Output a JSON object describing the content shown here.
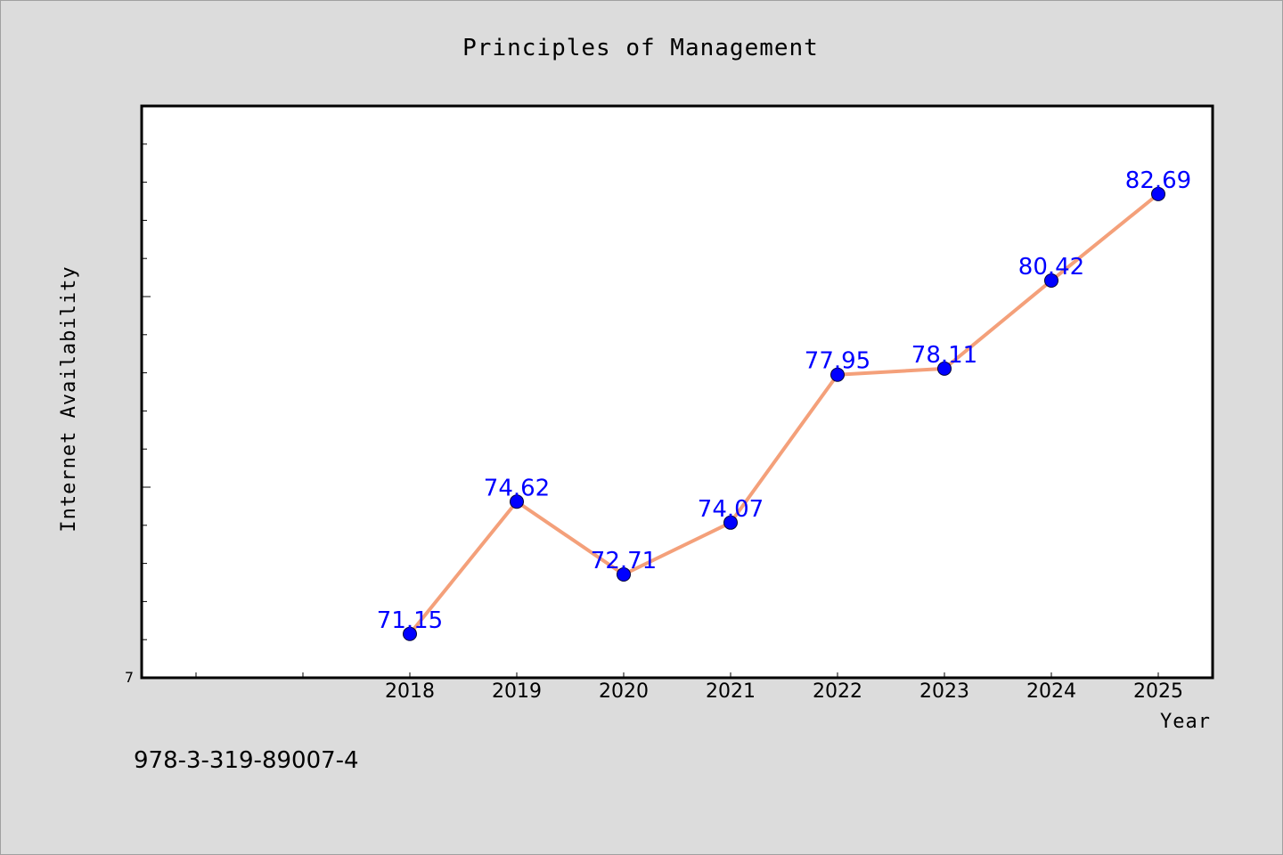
{
  "chart_data": {
    "type": "line",
    "title": "Principles of Management",
    "xlabel": "Year",
    "ylabel": "Internet Availability",
    "x": [
      "2018",
      "2019",
      "2020",
      "2021",
      "2022",
      "2023",
      "2024",
      "2025"
    ],
    "series": [
      {
        "values": [
          71.15,
          74.62,
          72.71,
          74.07,
          77.95,
          78.11,
          80.42,
          82.69
        ]
      }
    ],
    "data_labels": [
      "71.15",
      "74.62",
      "72.71",
      "74.07",
      "77.95",
      "78.11",
      "80.42",
      "82.69"
    ],
    "ylim": [
      70,
      85
    ],
    "y_tick_labels": [
      "7"
    ],
    "grid": false,
    "colors": {
      "line": "#f4a07a",
      "marker": "#0000ff",
      "label": "#0000ff",
      "background": "#dcdcdc",
      "plot_background": "#ffffff"
    }
  },
  "footer": {
    "isbn": "978-3-319-89007-4"
  }
}
